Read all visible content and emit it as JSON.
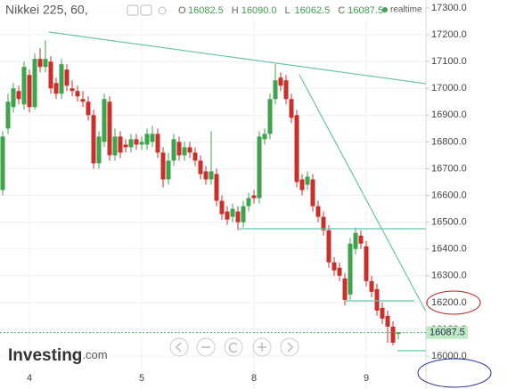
{
  "chart_data": {
    "type": "candlestick",
    "title": "Nikkei 225, 60,",
    "ohlc_header": [
      {
        "label": "O",
        "value": "16082.5"
      },
      {
        "label": "H",
        "value": "16090.0"
      },
      {
        "label": "L",
        "value": "16062.5"
      },
      {
        "label": "C",
        "value": "16087.5"
      }
    ],
    "status": "realtime",
    "brand": "Investing",
    "brand_suffix": ".com",
    "last_price_label": "16087.5",
    "up_color": "#3fa34d",
    "down_color": "#c9302c",
    "grid": true,
    "ylim": [
      15877,
      17330
    ],
    "yticks": [
      {
        "value": 16000,
        "label": "16000.0"
      },
      {
        "value": 16100,
        "label": "16100.0"
      },
      {
        "value": 16200,
        "label": "16200.0"
      },
      {
        "value": 16300,
        "label": "16300.0"
      },
      {
        "value": 16400,
        "label": "16400.0"
      },
      {
        "value": 16500,
        "label": "16500.0"
      },
      {
        "value": 16600,
        "label": "16600.0"
      },
      {
        "value": 16700,
        "label": "16700.0"
      },
      {
        "value": 16800,
        "label": "16800.0"
      },
      {
        "value": 16900,
        "label": "16900.0"
      },
      {
        "value": 17000,
        "label": "17000.0"
      },
      {
        "value": 17100,
        "label": "17100.0"
      },
      {
        "value": 17200,
        "label": "17200.0"
      },
      {
        "value": 17300,
        "label": "17300.0"
      }
    ],
    "categories": [
      null,
      null,
      null,
      null,
      null,
      "4",
      null,
      null,
      null,
      null,
      null,
      null,
      null,
      null,
      null,
      null,
      null,
      null,
      null,
      null,
      null,
      null,
      null,
      null,
      null,
      null,
      "5",
      null,
      null,
      null,
      null,
      null,
      null,
      null,
      null,
      null,
      null,
      null,
      null,
      null,
      null,
      null,
      null,
      null,
      null,
      null,
      null,
      "8",
      null,
      null,
      null,
      null,
      null,
      null,
      null,
      null,
      null,
      null,
      null,
      null,
      null,
      null,
      null,
      null,
      null,
      null,
      null,
      null,
      "9",
      null,
      null,
      null,
      null,
      null,
      null
    ],
    "open": [
      16620,
      16850,
      16930,
      16990,
      16940,
      17050,
      16930,
      17110,
      17080,
      17100,
      17020,
      16980,
      17070,
      17000,
      16990,
      16960,
      16950,
      16900,
      16720,
      16800,
      16950,
      16750,
      16820,
      16790,
      16780,
      16810,
      16790,
      16790,
      16800,
      16830,
      16760,
      16660,
      16730,
      16800,
      16750,
      16780,
      16760,
      16730,
      16690,
      16660,
      16680,
      16580,
      16540,
      16520,
      16540,
      16500,
      16560,
      16600,
      16590,
      16810,
      16830,
      16960,
      17040,
      17030,
      16960,
      16900,
      16660,
      16640,
      16660,
      16560,
      16520,
      16470,
      16350,
      16330,
      16290,
      16230,
      16400,
      16450,
      16410,
      16280,
      16250,
      16180,
      16150,
      16110,
      16082.5
    ],
    "high": [
      16840,
      16980,
      17020,
      17010,
      17100,
      17070,
      17130,
      17150,
      17180,
      17120,
      17040,
      17110,
      17090,
      17030,
      17010,
      16990,
      16970,
      16920,
      16840,
      16980,
      16970,
      16850,
      16840,
      16810,
      16830,
      16830,
      16820,
      16850,
      16860,
      16850,
      16780,
      16760,
      16830,
      16820,
      16800,
      16800,
      16780,
      16750,
      16710,
      16840,
      16700,
      16600,
      16560,
      16570,
      16560,
      16580,
      16610,
      16620,
      16840,
      16850,
      16980,
      17090,
      17060,
      17050,
      16980,
      16920,
      16680,
      16690,
      16680,
      16580,
      16540,
      16490,
      16370,
      16350,
      16310,
      16440,
      16480,
      16470,
      16430,
      16300,
      16270,
      16200,
      16170,
      16130,
      16090
    ],
    "low": [
      16600,
      16830,
      16910,
      16940,
      16920,
      16910,
      16920,
      17060,
      17060,
      16980,
      16960,
      16960,
      16990,
      16970,
      16950,
      16930,
      16880,
      16700,
      16700,
      16780,
      16730,
      16730,
      16740,
      16760,
      16760,
      16770,
      16770,
      16770,
      16780,
      16740,
      16630,
      16640,
      16710,
      16730,
      16730,
      16740,
      16710,
      16660,
      16640,
      16640,
      16560,
      16510,
      16490,
      16500,
      16470,
      16480,
      16540,
      16570,
      16570,
      16790,
      16810,
      16940,
      16990,
      16940,
      16870,
      16630,
      16600,
      16620,
      16540,
      16500,
      16450,
      16330,
      16300,
      16280,
      16190,
      16210,
      16380,
      16400,
      16260,
      16220,
      16150,
      16120,
      16050,
      16040,
      16062.5
    ],
    "close": [
      16820,
      16950,
      17000,
      16960,
      17080,
      16930,
      17110,
      17080,
      17110,
      17000,
      16980,
      17090,
      17010,
      16990,
      16970,
      16950,
      16900,
      16720,
      16820,
      16960,
      16750,
      16820,
      16760,
      16780,
      16810,
      16790,
      16800,
      16830,
      16830,
      16760,
      16660,
      16730,
      16810,
      16750,
      16780,
      16760,
      16730,
      16680,
      16660,
      16690,
      16580,
      16530,
      16510,
      16550,
      16500,
      16560,
      16590,
      16590,
      16820,
      16830,
      16960,
      17030,
      17010,
      16960,
      16890,
      16650,
      16620,
      16670,
      16560,
      16520,
      16470,
      16350,
      16320,
      16300,
      16210,
      16420,
      16460,
      16420,
      16280,
      16240,
      16170,
      16140,
      16110,
      16050,
      16087.5
    ]
  }
}
